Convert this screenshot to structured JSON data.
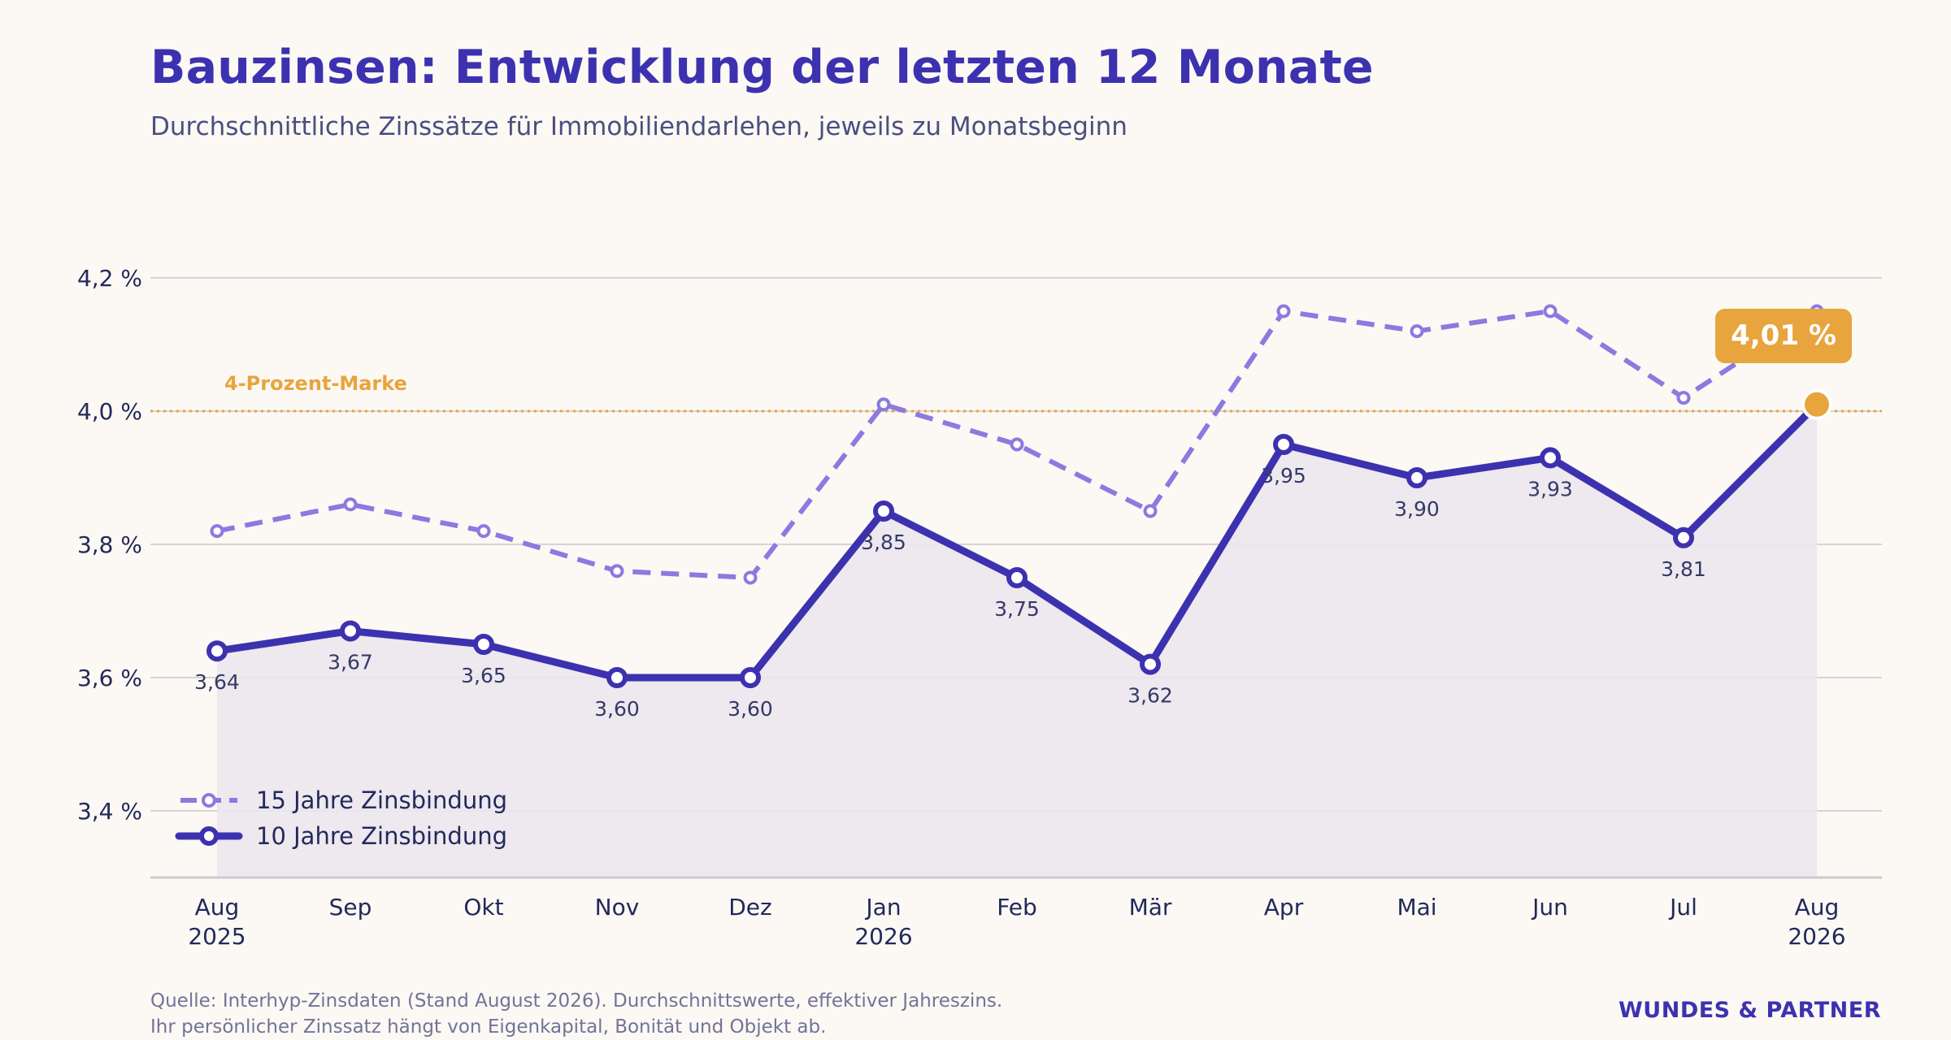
{
  "header": {
    "title": "Bauzinsen: Entwicklung der letzten 12 Monate",
    "subtitle": "Durchschnittliche Zinssätze für Immobiliendarlehen, jeweils zu Monatsbeginn"
  },
  "footer": {
    "source_line1": "Quelle: Interhyp-Zinsdaten (Stand August 2026). Durchschnittswerte, effektiver Jahreszins.",
    "source_line2": "Ihr persönlicher Zinssatz hängt von Eigenkapital, Bonität und Objekt ab.",
    "brand": "WUNDES & PARTNER"
  },
  "colors": {
    "primary": "#3c32b0",
    "secondary": "#8b7ae0",
    "accent": "#e8a43d",
    "area": "#ece6ee",
    "grid": "#d8d3d6",
    "text": "#222a5a",
    "background": "#fcf8f4"
  },
  "chart_data": {
    "type": "line",
    "categories": [
      [
        "Aug",
        "2025"
      ],
      [
        "Sep"
      ],
      [
        "Okt"
      ],
      [
        "Nov"
      ],
      [
        "Dez"
      ],
      [
        "Jan",
        "2026"
      ],
      [
        "Feb"
      ],
      [
        "Mär"
      ],
      [
        "Apr"
      ],
      [
        "Mai"
      ],
      [
        "Jun"
      ],
      [
        "Jul"
      ],
      [
        "Aug",
        "2026"
      ]
    ],
    "ylim": [
      3.3,
      4.3
    ],
    "yticks": [
      3.4,
      3.6,
      3.8,
      4.0,
      4.2
    ],
    "ytick_labels": [
      "3,4 %",
      "3,6 %",
      "3,8 %",
      "4,0 %",
      "4,2 %"
    ],
    "grid": true,
    "legend_position": "bottom-left",
    "series": [
      {
        "name": "15 Jahre Zinsbindung",
        "style": "dashed",
        "values": [
          3.82,
          3.86,
          3.82,
          3.76,
          3.75,
          4.01,
          3.95,
          3.85,
          4.15,
          4.12,
          4.15,
          4.02,
          4.15
        ]
      },
      {
        "name": "10 Jahre Zinsbindung",
        "style": "solid",
        "values": [
          3.64,
          3.67,
          3.65,
          3.6,
          3.6,
          3.85,
          3.75,
          3.62,
          3.95,
          3.9,
          3.93,
          3.81,
          4.01
        ],
        "data_labels": [
          "3,64",
          "3,67",
          "3,65",
          "3,60",
          "3,60",
          "3,85",
          "3,75",
          "3,62",
          "3,95",
          "3,90",
          "3,93",
          "3,81"
        ]
      }
    ],
    "reference_line": {
      "value": 4.0,
      "label": "4-Prozent-Marke"
    },
    "highlight": {
      "series_index": 1,
      "point_index": 12,
      "label": "4,01 %"
    }
  }
}
